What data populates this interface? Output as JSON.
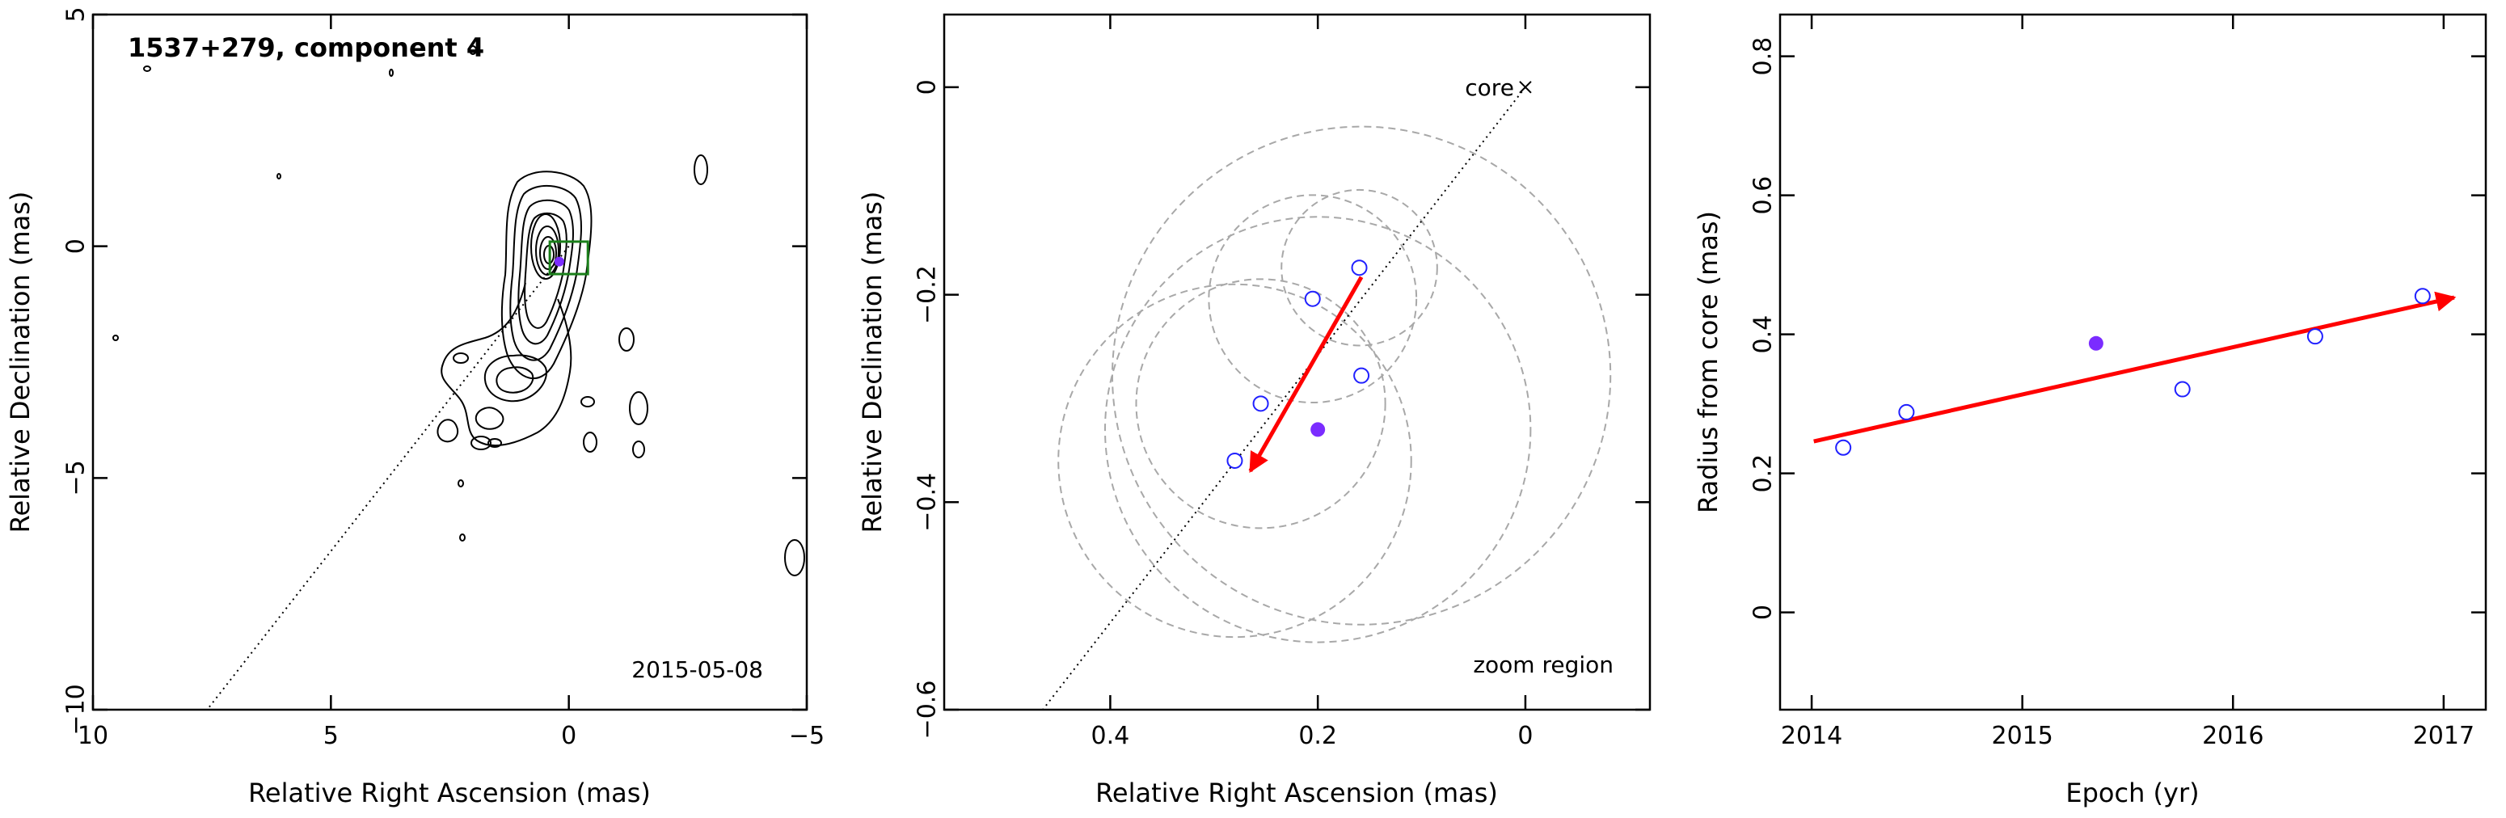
{
  "chart_data": [
    {
      "type": "contour-map",
      "title": "1537+279, component 4",
      "annotation": "2015-05-08",
      "xlabel": "Relative Right Ascension (mas)",
      "ylabel": "Relative Declination (mas)",
      "xlim": [
        10,
        -5
      ],
      "ylim": [
        -10,
        5
      ],
      "xticks": [
        {
          "value": 10,
          "label": "10"
        },
        {
          "value": 5,
          "label": "5"
        },
        {
          "value": 0,
          "label": "0"
        },
        {
          "value": -5,
          "label": "−5"
        }
      ],
      "yticks": [
        {
          "value": 5,
          "label": "5"
        },
        {
          "value": 0,
          "label": "0"
        },
        {
          "value": -5,
          "label": "−5"
        },
        {
          "value": -10,
          "label": "−10"
        }
      ],
      "jet_line": [
        [
          0,
          0
        ],
        [
          7.6,
          -10
        ]
      ],
      "zoom_box": {
        "x": [
          0.4,
          -0.4
        ],
        "y": [
          -0.6,
          0.1
        ]
      },
      "marker": {
        "x": 0.2,
        "y": -0.33
      }
    },
    {
      "type": "scatter",
      "xlabel": "Relative Right Ascension (mas)",
      "ylabel": "Relative Declination (mas)",
      "xlim": [
        0.56,
        -0.12
      ],
      "ylim": [
        -0.6,
        0.07
      ],
      "xticks": [
        {
          "value": 0.4,
          "label": "0.4"
        },
        {
          "value": 0.2,
          "label": "0.2"
        },
        {
          "value": 0,
          "label": "0"
        }
      ],
      "yticks": [
        {
          "value": 0,
          "label": "0"
        },
        {
          "value": -0.2,
          "label": "−0.2"
        },
        {
          "value": -0.4,
          "label": "−0.4"
        },
        {
          "value": -0.6,
          "label": "−0.6"
        }
      ],
      "core_label": "core",
      "core": {
        "x": 0,
        "y": 0
      },
      "region_label": "zoom region",
      "points_open": [
        {
          "x": 0.16,
          "y": -0.174
        },
        {
          "x": 0.205,
          "y": -0.204
        },
        {
          "x": 0.158,
          "y": -0.278
        },
        {
          "x": 0.255,
          "y": -0.305
        },
        {
          "x": 0.28,
          "y": -0.36
        }
      ],
      "point_filled": {
        "x": 0.2,
        "y": -0.33
      },
      "circles": [
        {
          "cx": 0.16,
          "cy": -0.174,
          "r": 0.075
        },
        {
          "cx": 0.205,
          "cy": -0.204,
          "r": 0.1
        },
        {
          "cx": 0.158,
          "cy": -0.278,
          "r": 0.24
        },
        {
          "cx": 0.255,
          "cy": -0.305,
          "r": 0.12
        },
        {
          "cx": 0.28,
          "cy": -0.36,
          "r": 0.17
        },
        {
          "cx": 0.2,
          "cy": -0.33,
          "r": 0.205
        }
      ],
      "motion_arrow": {
        "from": [
          0.158,
          -0.183
        ],
        "to": [
          0.265,
          -0.37
        ]
      },
      "jet_line": [
        [
          0,
          0
        ],
        [
          0.465,
          -0.6
        ]
      ]
    },
    {
      "type": "scatter",
      "xlabel": "Epoch (yr)",
      "ylabel": "Radius from core (mas)",
      "xlim": [
        2013.85,
        2017.2
      ],
      "ylim": [
        -0.14,
        0.86
      ],
      "xticks": [
        {
          "value": 2014,
          "label": "2014"
        },
        {
          "value": 2015,
          "label": "2015"
        },
        {
          "value": 2016,
          "label": "2016"
        },
        {
          "value": 2017,
          "label": "2017"
        }
      ],
      "yticks": [
        {
          "value": 0,
          "label": "0"
        },
        {
          "value": 0.2,
          "label": "0.2"
        },
        {
          "value": 0.4,
          "label": "0.4"
        },
        {
          "value": 0.6,
          "label": "0.6"
        },
        {
          "value": 0.8,
          "label": "0.8"
        }
      ],
      "points_open": [
        {
          "x": 2014.15,
          "y": 0.237
        },
        {
          "x": 2014.45,
          "y": 0.288
        },
        {
          "x": 2015.76,
          "y": 0.321
        },
        {
          "x": 2016.39,
          "y": 0.397
        },
        {
          "x": 2016.9,
          "y": 0.455
        }
      ],
      "point_filled": {
        "x": 2015.35,
        "y": 0.387
      },
      "fit_arrow": {
        "from": [
          2014.01,
          0.246
        ],
        "to": [
          2017.05,
          0.453
        ]
      }
    }
  ]
}
